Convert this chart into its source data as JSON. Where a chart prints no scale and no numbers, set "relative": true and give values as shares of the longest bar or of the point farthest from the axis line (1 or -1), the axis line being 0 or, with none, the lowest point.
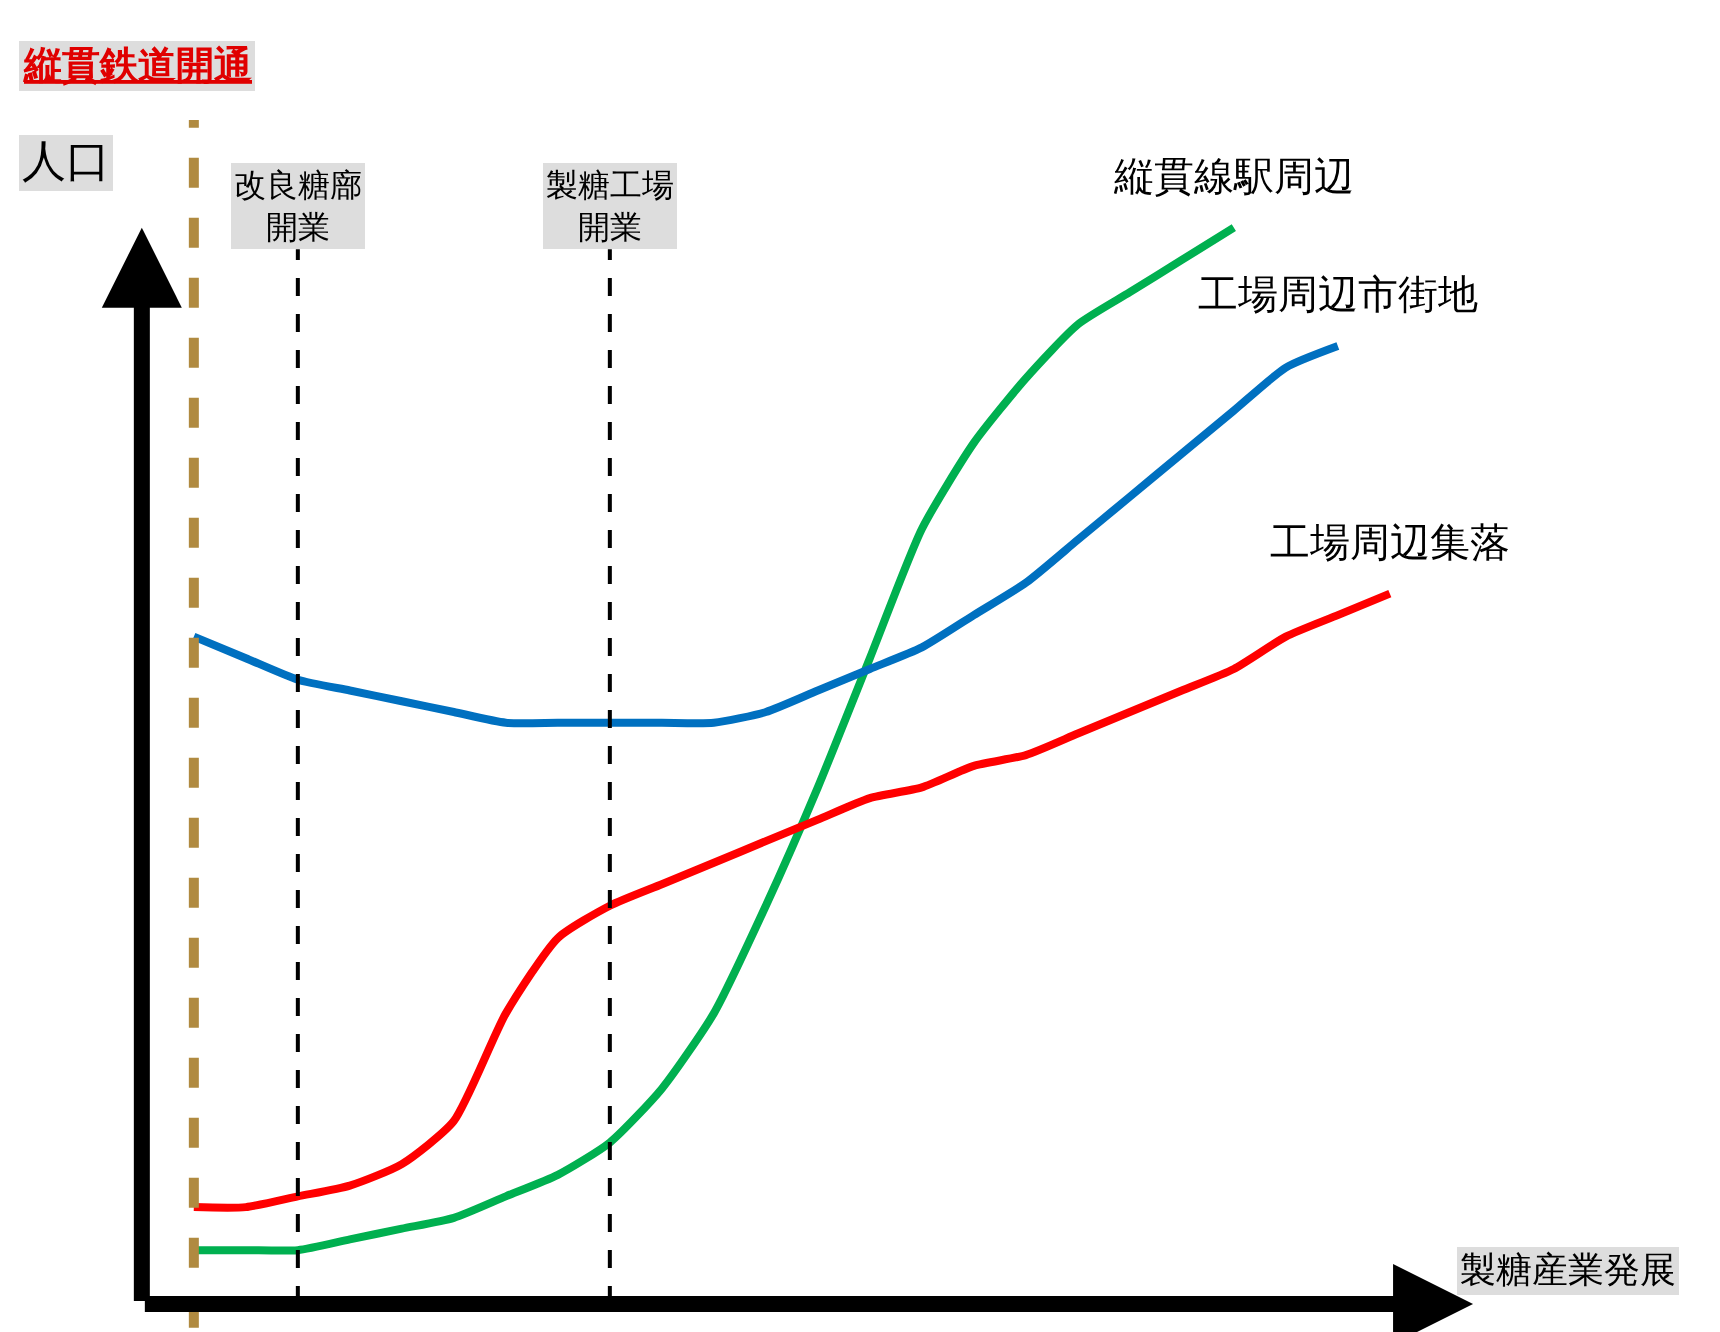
{
  "chart_data": {
    "type": "line",
    "relative": true,
    "xlabel": "製糖産業発展",
    "ylabel": "人口",
    "categories": [
      null,
      null,
      null,
      null,
      null,
      null,
      null,
      null,
      null,
      null,
      null,
      null,
      null,
      null,
      null,
      null,
      null,
      null,
      null,
      null,
      null,
      null,
      null,
      null
    ],
    "series": [
      {
        "name": "縦貫線駅周辺",
        "color": "#00b050",
        "values": [
          0.05,
          0.05,
          0.05,
          0.06,
          0.07,
          0.08,
          0.1,
          0.12,
          0.15,
          0.2,
          0.27,
          0.37,
          0.48,
          0.6,
          0.72,
          0.8,
          0.86,
          0.91,
          0.94,
          0.97,
          1.0,
          null,
          null,
          null
        ]
      },
      {
        "name": "工場周辺市街地",
        "color": "#0070c0",
        "values": [
          0.62,
          0.6,
          0.58,
          0.57,
          0.56,
          0.55,
          0.54,
          0.54,
          0.54,
          0.54,
          0.54,
          0.55,
          0.57,
          0.59,
          0.61,
          0.64,
          0.67,
          0.71,
          0.75,
          0.79,
          0.83,
          0.87,
          0.89,
          null
        ]
      },
      {
        "name": "工場周辺集落",
        "color": "#ff0000",
        "values": [
          0.09,
          0.09,
          0.1,
          0.11,
          0.13,
          0.17,
          0.27,
          0.34,
          0.37,
          0.39,
          0.41,
          0.43,
          0.45,
          0.47,
          0.48,
          0.5,
          0.51,
          0.53,
          0.55,
          0.57,
          0.59,
          0.62,
          0.64,
          0.66
        ]
      }
    ],
    "annotations": [
      "縦貫鉄道開通",
      "改良糖廍開業",
      "製糖工場開業"
    ],
    "legend": false,
    "line_style": "solid",
    "marker": "none"
  }
}
